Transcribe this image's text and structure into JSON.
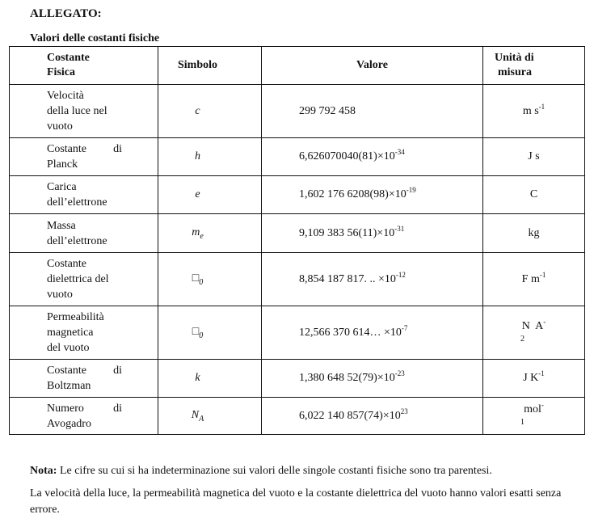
{
  "heading": "ALLEGATO:",
  "subheading": "Valori delle costanti fisiche",
  "table": {
    "headers": {
      "name": [
        "Costante",
        "Fisica"
      ],
      "symbol": "Simbolo",
      "value": "Valore",
      "unit": [
        "Unità di",
        "misura"
      ]
    },
    "rows": [
      {
        "name": [
          [
            "Velocità"
          ],
          [
            "della luce nel"
          ],
          [
            "vuoto"
          ]
        ],
        "symbol": {
          "main": "c",
          "sub": ""
        },
        "value": {
          "base": "299 792 458",
          "exp": ""
        },
        "unit": {
          "base": "m s",
          "sup": "-1",
          "line2": ""
        }
      },
      {
        "name": [
          [
            "Costante",
            "di"
          ],
          [
            "Planck"
          ]
        ],
        "symbol": {
          "main": "h",
          "sub": ""
        },
        "value": {
          "base": "6,626070040(81)×10",
          "exp": "-34"
        },
        "unit": {
          "base": "J s",
          "sup": "",
          "line2": ""
        }
      },
      {
        "name": [
          [
            "Carica"
          ],
          [
            "dell’elettrone"
          ]
        ],
        "symbol": {
          "main": "e",
          "sub": ""
        },
        "value": {
          "base": "1,602 176 6208(98)×10",
          "exp": "-19"
        },
        "unit": {
          "base": "C",
          "sup": "",
          "line2": ""
        }
      },
      {
        "name": [
          [
            "Massa"
          ],
          [
            "dell’elettrone"
          ]
        ],
        "symbol": {
          "main": "m",
          "sub": "e"
        },
        "value": {
          "base": "9,109 383 56(11)×10",
          "exp": "-31"
        },
        "unit": {
          "base": "kg",
          "sup": "",
          "line2": ""
        }
      },
      {
        "name": [
          [
            "Costante"
          ],
          [
            "dielettrica del"
          ],
          [
            "vuoto"
          ]
        ],
        "symbol": {
          "main": "□",
          "sub": "0"
        },
        "value": {
          "base": "8,854 187 817. ..  ×10",
          "exp": "-12"
        },
        "unit": {
          "base": "F m",
          "sup": "-1",
          "line2": ""
        }
      },
      {
        "name": [
          [
            "Permeabilità"
          ],
          [
            "magnetica"
          ],
          [
            "del vuoto"
          ]
        ],
        "symbol": {
          "main": "□",
          "sub": "0"
        },
        "value": {
          "base": "12,566 370 614… ×10",
          "exp": "-7"
        },
        "unit": {
          "base": "N  A",
          "sup": "-",
          "line2": "2"
        }
      },
      {
        "name": [
          [
            "Costante",
            "di"
          ],
          [
            "Boltzman"
          ]
        ],
        "symbol": {
          "main": "k",
          "sub": ""
        },
        "value": {
          "base": "1,380 648 52(79)×10",
          "exp": "-23"
        },
        "unit": {
          "base": "J K",
          "sup": "-1",
          "line2": ""
        }
      },
      {
        "name": [
          [
            "Numero",
            "di"
          ],
          [
            "Avogadro"
          ]
        ],
        "symbol": {
          "main": "N",
          "sub": "A"
        },
        "value": {
          "base": "6,022 140 857(74)×10",
          "exp": "23"
        },
        "unit": {
          "base": "mol",
          "sup": "-",
          "line2": "1"
        }
      }
    ]
  },
  "notes": {
    "nota_label": "Nota:",
    "nota_text": " Le cifre su cui si ha indeterminazione sui valori delle singole costanti fisiche sono tra parentesi.",
    "paragraph": "La velocità della luce, la permeabilità magnetica del vuoto e la costante dielettrica del vuoto hanno valori esatti senza errore."
  }
}
